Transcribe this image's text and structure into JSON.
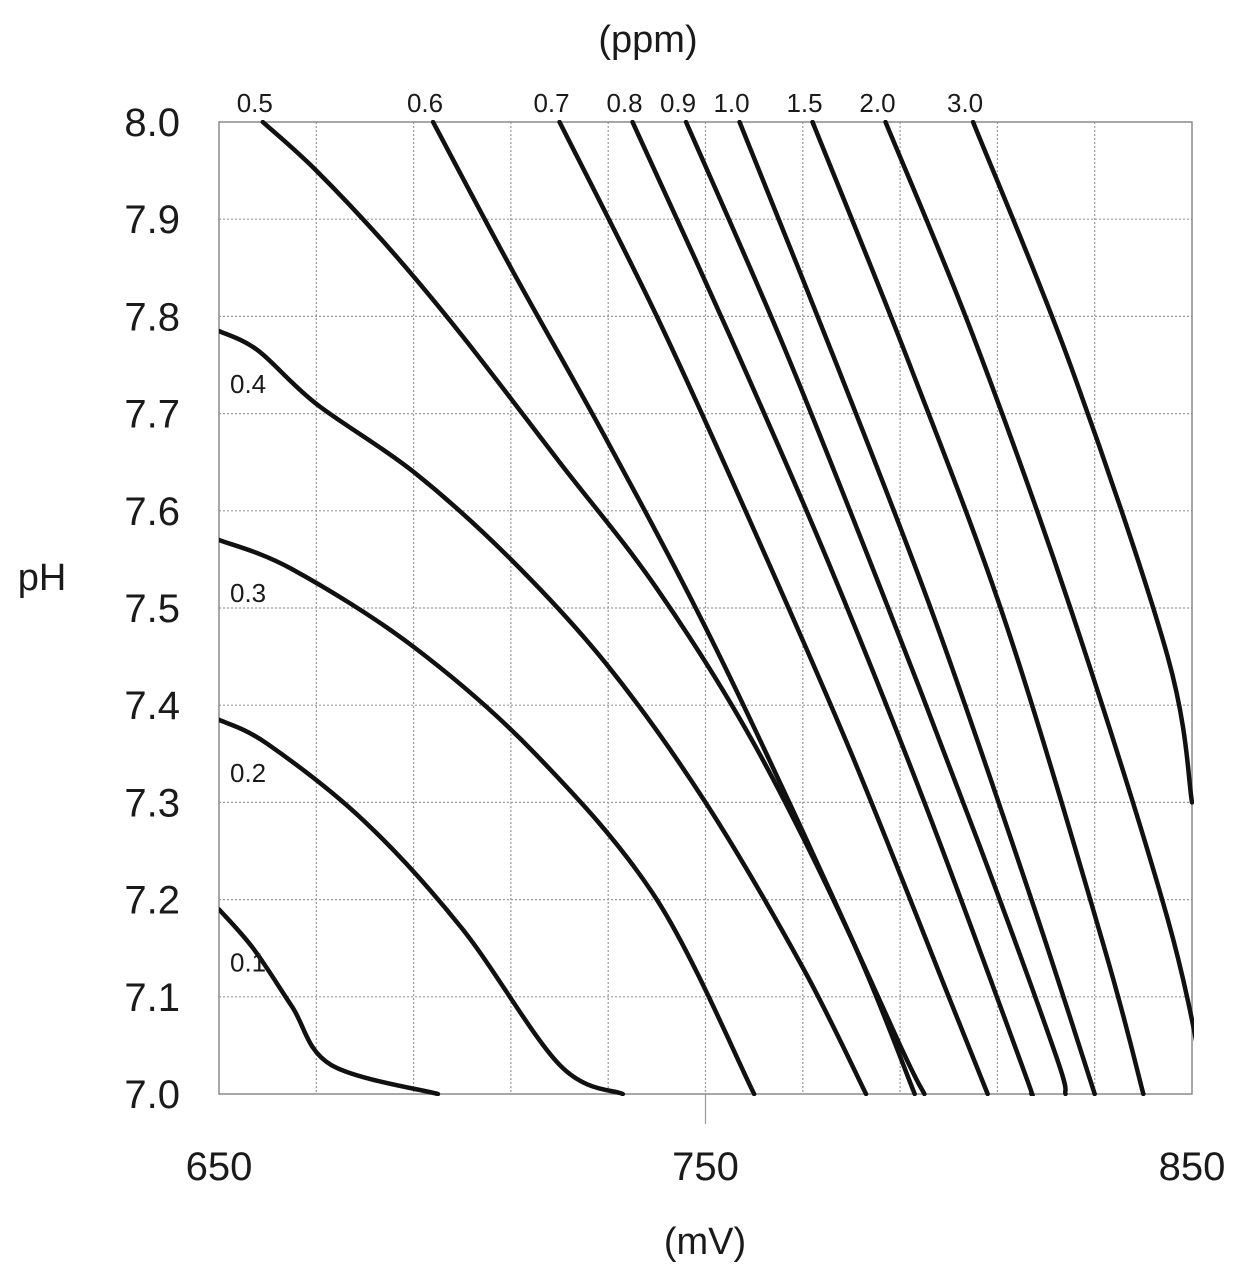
{
  "chart_data": {
    "type": "line",
    "title": "",
    "xlabel": "(mV)",
    "ylabel": "pH",
    "top_label": "(ppm)",
    "xlim": [
      650,
      850
    ],
    "ylim": [
      7.0,
      8.0
    ],
    "x_ticks": [
      "650",
      "750",
      "850"
    ],
    "y_ticks": [
      "7.0",
      "7.1",
      "7.2",
      "7.3",
      "7.4",
      "7.5",
      "7.6",
      "7.7",
      "7.8",
      "7.9",
      "8.0"
    ],
    "grid": true,
    "series": [
      {
        "name": "0.1",
        "label_pos": "left",
        "points": [
          [
            650,
            7.19
          ],
          [
            657,
            7.15
          ],
          [
            665,
            7.09
          ],
          [
            673,
            7.03
          ],
          [
            695,
            7.0
          ]
        ]
      },
      {
        "name": "0.2",
        "label_pos": "left",
        "points": [
          [
            650,
            7.385
          ],
          [
            660,
            7.36
          ],
          [
            680,
            7.28
          ],
          [
            700,
            7.17
          ],
          [
            720,
            7.03
          ],
          [
            733,
            7.0
          ]
        ]
      },
      {
        "name": "0.3",
        "label_pos": "left",
        "points": [
          [
            650,
            7.57
          ],
          [
            665,
            7.54
          ],
          [
            690,
            7.46
          ],
          [
            715,
            7.35
          ],
          [
            740,
            7.2
          ],
          [
            760,
            7.0
          ]
        ]
      },
      {
        "name": "0.4",
        "label_pos": "left",
        "points": [
          [
            650,
            7.785
          ],
          [
            658,
            7.765
          ],
          [
            670,
            7.71
          ],
          [
            690,
            7.64
          ],
          [
            710,
            7.55
          ],
          [
            730,
            7.44
          ],
          [
            750,
            7.3
          ],
          [
            770,
            7.13
          ],
          [
            783,
            7.0
          ]
        ]
      },
      {
        "name": "0.5",
        "label_pos": "top",
        "points": [
          [
            659,
            8.0
          ],
          [
            670,
            7.95
          ],
          [
            685,
            7.87
          ],
          [
            700,
            7.78
          ],
          [
            720,
            7.65
          ],
          [
            740,
            7.52
          ],
          [
            760,
            7.36
          ],
          [
            780,
            7.16
          ],
          [
            793,
            7.0
          ]
        ]
      },
      {
        "name": "0.6",
        "label_pos": "top",
        "points": [
          [
            694,
            8.0
          ],
          [
            710,
            7.85
          ],
          [
            730,
            7.67
          ],
          [
            750,
            7.48
          ],
          [
            770,
            7.27
          ],
          [
            790,
            7.05
          ],
          [
            795,
            7.0
          ]
        ]
      },
      {
        "name": "0.7",
        "label_pos": "top",
        "points": [
          [
            720,
            8.0
          ],
          [
            740,
            7.8
          ],
          [
            760,
            7.58
          ],
          [
            780,
            7.35
          ],
          [
            800,
            7.1
          ],
          [
            808,
            7.0
          ]
        ]
      },
      {
        "name": "0.8",
        "label_pos": "top",
        "points": [
          [
            735,
            8.0
          ],
          [
            755,
            7.78
          ],
          [
            775,
            7.55
          ],
          [
            795,
            7.3
          ],
          [
            815,
            7.03
          ],
          [
            817,
            7.0
          ]
        ]
      },
      {
        "name": "0.9",
        "label_pos": "top",
        "points": [
          [
            746,
            8.0
          ],
          [
            766,
            7.77
          ],
          [
            786,
            7.52
          ],
          [
            806,
            7.26
          ],
          [
            822,
            7.04
          ],
          [
            824,
            7.0
          ]
        ]
      },
      {
        "name": "1.0",
        "label_pos": "top",
        "points": [
          [
            757,
            8.0
          ],
          [
            777,
            7.75
          ],
          [
            797,
            7.49
          ],
          [
            817,
            7.2
          ],
          [
            830,
            7.0
          ]
        ]
      },
      {
        "name": "1.5",
        "label_pos": "top",
        "points": [
          [
            772,
            8.0
          ],
          [
            792,
            7.75
          ],
          [
            812,
            7.48
          ],
          [
            832,
            7.15
          ],
          [
            840,
            7.0
          ]
        ]
      },
      {
        "name": "2.0",
        "label_pos": "top",
        "points": [
          [
            787,
            8.0
          ],
          [
            805,
            7.78
          ],
          [
            825,
            7.5
          ],
          [
            845,
            7.18
          ],
          [
            853,
            7.0
          ]
        ]
      },
      {
        "name": "3.0",
        "label_pos": "top",
        "points": [
          [
            805,
            8.0
          ],
          [
            825,
            7.75
          ],
          [
            845,
            7.45
          ],
          [
            850,
            7.3
          ]
        ]
      }
    ]
  }
}
